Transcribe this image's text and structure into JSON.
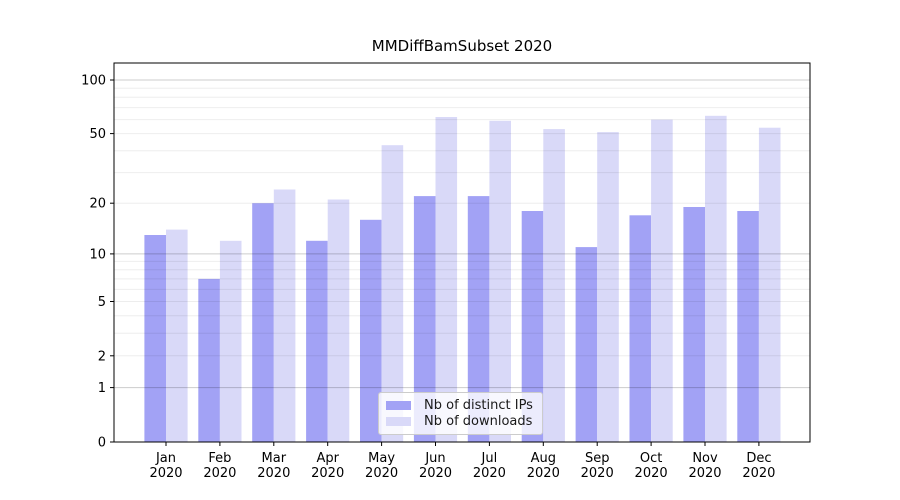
{
  "chart_data": {
    "type": "bar",
    "title": "MMDiffBamSubset 2020",
    "categories": [
      "Jan",
      "Feb",
      "Mar",
      "Apr",
      "May",
      "Jun",
      "Jul",
      "Aug",
      "Sep",
      "Oct",
      "Nov",
      "Dec"
    ],
    "year_label": "2020",
    "series": [
      {
        "name": "Nb of distinct IPs",
        "color": "#a2a2f5",
        "values": [
          13,
          7,
          20,
          12,
          16,
          22,
          22,
          18,
          11,
          17,
          19,
          18
        ]
      },
      {
        "name": "Nb of downloads",
        "color": "#d9d9f8",
        "values": [
          14,
          12,
          24,
          21,
          43,
          62,
          59,
          53,
          51,
          60,
          63,
          54
        ]
      }
    ],
    "y_axis": {
      "scale": "log1p",
      "tick_values": [
        100,
        50,
        20,
        10,
        5,
        2,
        1,
        0
      ],
      "major_grid_values": [
        1,
        10,
        100
      ],
      "minor_grid_values": [
        2,
        3,
        4,
        5,
        6,
        7,
        8,
        9,
        20,
        30,
        40,
        50,
        60,
        70,
        80,
        90
      ],
      "range_top": 100
    },
    "x_axis": {
      "label_lines": 2
    },
    "legend": {
      "position": "lower-center",
      "entries": [
        "Nb of distinct IPs",
        "Nb of downloads"
      ]
    },
    "grid": true,
    "colors": {
      "spine": "#000000",
      "major_grid": "rgba(0,0,0,0.20)",
      "minor_grid": "rgba(0,0,0,0.07)",
      "tick_label": "#000000"
    }
  }
}
